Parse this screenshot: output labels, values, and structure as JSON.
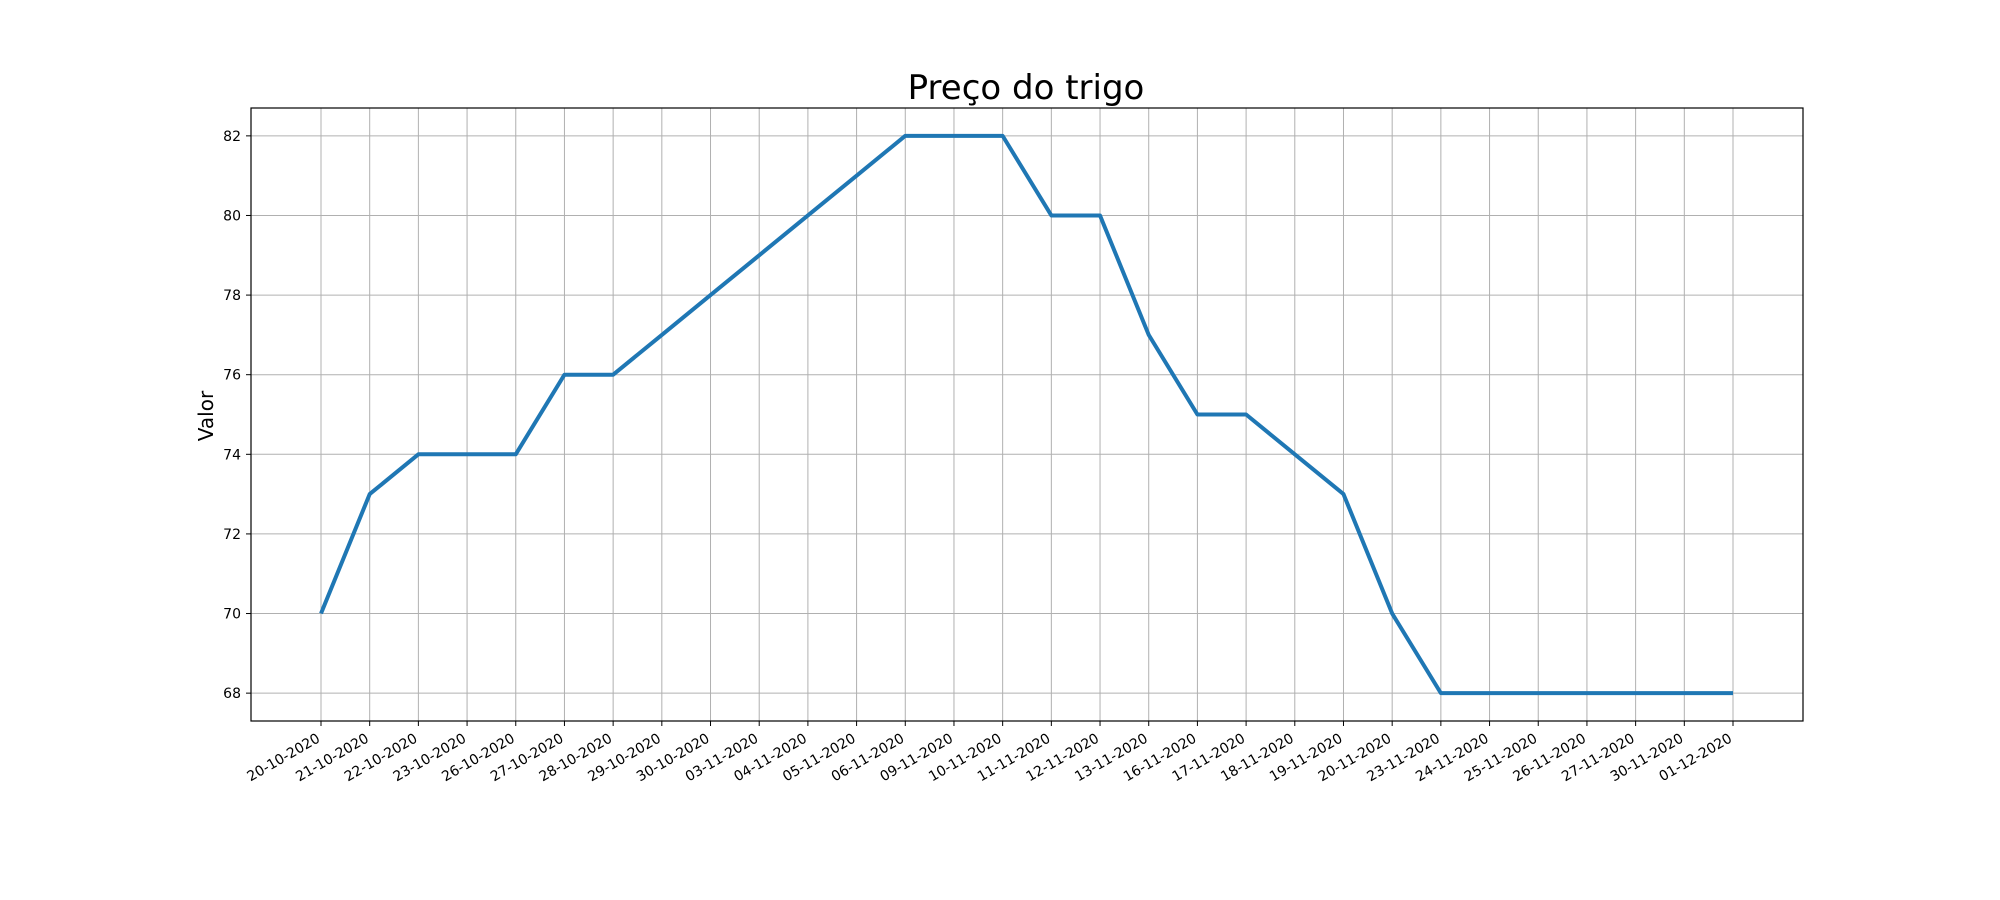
{
  "chart_data": {
    "type": "line",
    "title": "Preço do trigo",
    "xlabel": "",
    "ylabel": "Valor",
    "categories": [
      "20-10-2020",
      "21-10-2020",
      "22-10-2020",
      "23-10-2020",
      "26-10-2020",
      "27-10-2020",
      "28-10-2020",
      "29-10-2020",
      "30-10-2020",
      "03-11-2020",
      "04-11-2020",
      "05-11-2020",
      "06-11-2020",
      "09-11-2020",
      "10-11-2020",
      "11-11-2020",
      "12-11-2020",
      "13-11-2020",
      "16-11-2020",
      "17-11-2020",
      "18-11-2020",
      "19-11-2020",
      "20-11-2020",
      "23-11-2020",
      "24-11-2020",
      "25-11-2020",
      "26-11-2020",
      "27-11-2020",
      "30-11-2020",
      "01-12-2020"
    ],
    "series": [
      {
        "values": [
          70,
          73,
          74,
          74,
          74,
          76,
          76,
          77,
          78,
          79,
          80,
          81,
          82,
          82,
          82,
          80,
          80,
          77,
          75,
          75,
          74,
          73,
          70,
          68,
          68,
          68,
          68,
          68,
          68,
          68
        ],
        "color": "#1f77b4"
      }
    ],
    "ylim": [
      67.3,
      82.7
    ],
    "yticks": [
      68,
      70,
      72,
      74,
      76,
      78,
      80,
      82
    ],
    "grid": true,
    "legend": "none"
  }
}
